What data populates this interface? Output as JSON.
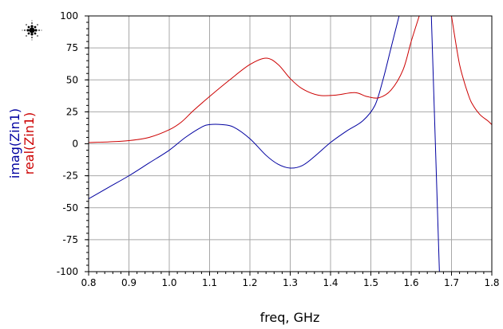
{
  "chart_data": {
    "type": "line",
    "xlabel": "freq, GHz",
    "ylabel": [
      "imag(Zin1)",
      "real(Zin1)"
    ],
    "xlim": [
      0.8,
      1.8
    ],
    "ylim": [
      -100,
      100
    ],
    "x_ticks": [
      "0.8",
      "0.9",
      "1.0",
      "1.1",
      "1.2",
      "1.3",
      "1.4",
      "1.5",
      "1.6",
      "1.7",
      "1.8"
    ],
    "y_ticks": [
      "100",
      "75",
      "50",
      "25",
      "0",
      "-25",
      "-50",
      "-75",
      "-100"
    ],
    "grid": true,
    "legend": "none",
    "series": [
      {
        "name": "imag(Zin1)",
        "color": "#0000a0",
        "x": [
          0.8,
          0.85,
          0.9,
          0.95,
          1.0,
          1.04,
          1.08,
          1.1,
          1.13,
          1.16,
          1.2,
          1.24,
          1.27,
          1.3,
          1.33,
          1.36,
          1.4,
          1.44,
          1.48,
          1.51,
          1.53,
          1.55,
          1.57,
          1.575,
          1.6,
          1.65,
          1.655,
          1.66,
          1.665,
          1.67
        ],
        "values": [
          -43,
          -34,
          -25,
          -15,
          -5,
          5,
          13,
          15,
          15,
          13,
          4,
          -9,
          -16,
          -19,
          -17,
          -10,
          1,
          10,
          18,
          30,
          50,
          75,
          100,
          100,
          100,
          100,
          50,
          0,
          -50,
          -100
        ]
      },
      {
        "name": "real(Zin1)",
        "color": "#cc0000",
        "x": [
          0.8,
          0.85,
          0.9,
          0.95,
          1.0,
          1.03,
          1.06,
          1.1,
          1.15,
          1.2,
          1.24,
          1.27,
          1.3,
          1.33,
          1.37,
          1.41,
          1.46,
          1.49,
          1.52,
          1.55,
          1.58,
          1.6,
          1.62,
          1.63,
          1.7,
          1.71,
          1.72,
          1.73,
          1.74,
          1.75,
          1.77,
          1.79,
          1.8
        ],
        "values": [
          1,
          1.5,
          2.5,
          5,
          11,
          17,
          26,
          37,
          50,
          62,
          67,
          62,
          51,
          43,
          38,
          38,
          40,
          37,
          36,
          42,
          58,
          80,
          100,
          100,
          100,
          80,
          62,
          50,
          40,
          32,
          23,
          18,
          15
        ]
      }
    ]
  },
  "logo_icon": "agilent-spark-icon"
}
